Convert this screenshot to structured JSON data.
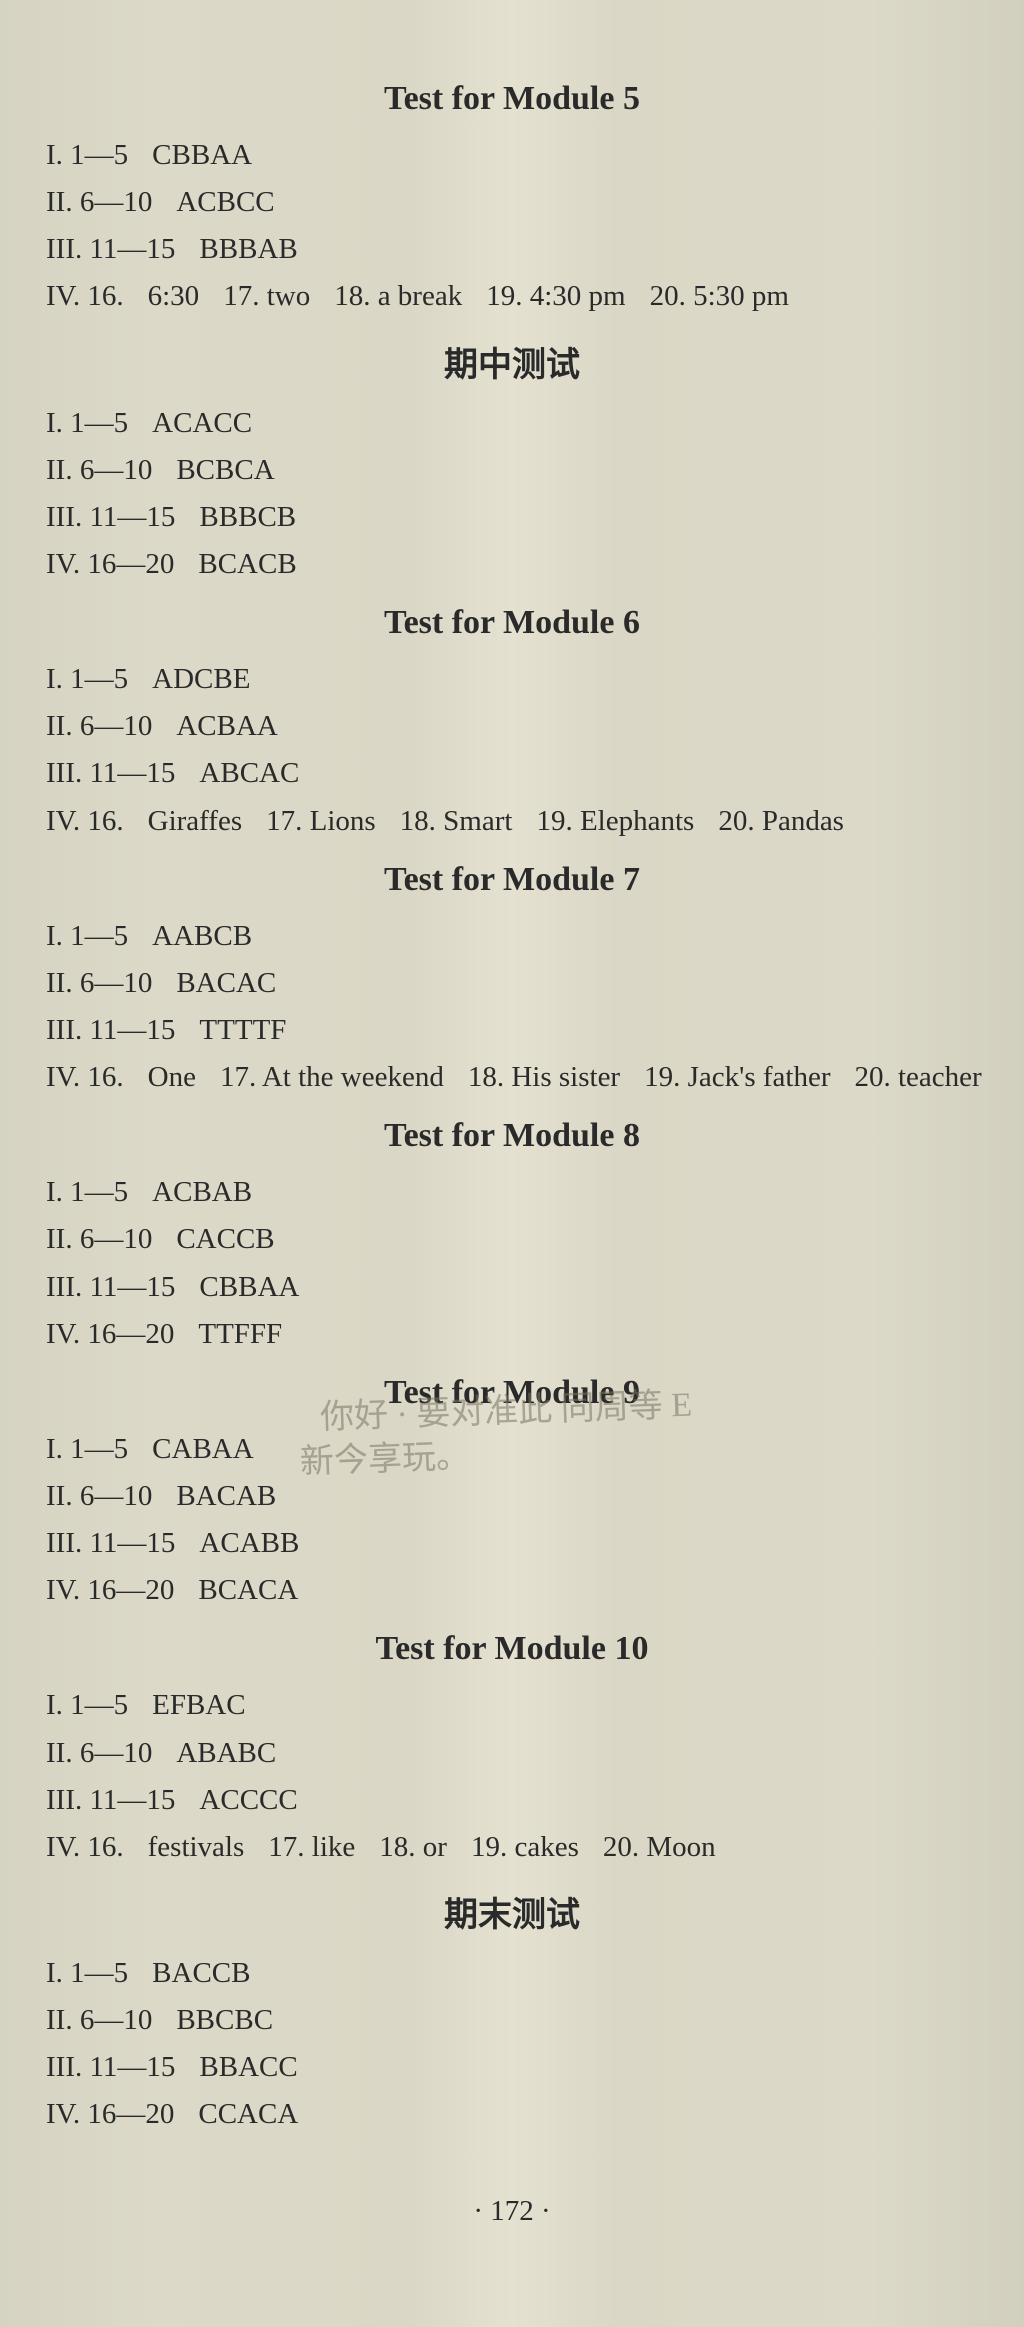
{
  "page_number": "· 172 ·",
  "pencil_note_line1": "你好 · 要对准此 同周等 E",
  "pencil_note_line2": "新今享玩。",
  "sections": [
    {
      "title": "Test for Module 5",
      "lines": [
        {
          "prefix": "I",
          "range": ". 1—5",
          "parts": [
            "CBBAA"
          ]
        },
        {
          "prefix": "II",
          "range": ". 6—10",
          "parts": [
            "ACBCC"
          ]
        },
        {
          "prefix": "III",
          "range": ". 11—15",
          "parts": [
            "BBBAB"
          ]
        },
        {
          "prefix": "IV",
          "range": ". 16.",
          "parts": [
            "6:30",
            "17. two",
            "18. a break",
            "19. 4:30 pm",
            "20. 5:30 pm"
          ]
        }
      ]
    },
    {
      "title": "期中测试",
      "lines": [
        {
          "prefix": "I",
          "range": ". 1—5",
          "parts": [
            "ACACC"
          ]
        },
        {
          "prefix": "II",
          "range": ". 6—10",
          "parts": [
            "BCBCA"
          ]
        },
        {
          "prefix": "III",
          "range": ". 11—15",
          "parts": [
            "BBBCB"
          ]
        },
        {
          "prefix": "IV",
          "range": ". 16—20",
          "parts": [
            "BCACB"
          ]
        }
      ]
    },
    {
      "title": "Test for Module 6",
      "lines": [
        {
          "prefix": "I",
          "range": ". 1—5",
          "parts": [
            "ADCBE"
          ]
        },
        {
          "prefix": "II",
          "range": ". 6—10",
          "parts": [
            "ACBAA"
          ]
        },
        {
          "prefix": "III",
          "range": ". 11—15",
          "parts": [
            "ABCAC"
          ]
        },
        {
          "prefix": "IV",
          "range": ". 16.",
          "parts": [
            "Giraffes",
            "17. Lions",
            "18. Smart",
            "19. Elephants",
            "20. Pandas"
          ]
        }
      ]
    },
    {
      "title": "Test for Module 7",
      "lines": [
        {
          "prefix": "I",
          "range": ". 1—5",
          "parts": [
            "AABCB"
          ]
        },
        {
          "prefix": "II",
          "range": ". 6—10",
          "parts": [
            "BACAC"
          ]
        },
        {
          "prefix": "III",
          "range": ". 11—15",
          "parts": [
            "TTTTF"
          ]
        },
        {
          "prefix": "IV",
          "range": ". 16.",
          "parts": [
            "One",
            "17. At the weekend",
            "18. His sister",
            "19. Jack's father",
            "20. teacher"
          ]
        }
      ]
    },
    {
      "title": "Test for Module 8",
      "lines": [
        {
          "prefix": "I",
          "range": ". 1—5",
          "parts": [
            "ACBAB"
          ]
        },
        {
          "prefix": "II",
          "range": ". 6—10",
          "parts": [
            "CACCB"
          ]
        },
        {
          "prefix": "III",
          "range": ". 11—15",
          "parts": [
            "CBBAA"
          ]
        },
        {
          "prefix": "IV",
          "range": ". 16—20",
          "parts": [
            "TTFFF"
          ]
        }
      ]
    },
    {
      "title": "Test for Module 9",
      "lines": [
        {
          "prefix": "I",
          "range": ". 1—5",
          "parts": [
            "CABAA"
          ]
        },
        {
          "prefix": "II",
          "range": ". 6—10",
          "parts": [
            "BACAB"
          ]
        },
        {
          "prefix": "III",
          "range": ". 11—15",
          "parts": [
            "ACABB"
          ]
        },
        {
          "prefix": "IV",
          "range": ". 16—20",
          "parts": [
            "BCACA"
          ]
        }
      ]
    },
    {
      "title": "Test for Module 10",
      "lines": [
        {
          "prefix": "I",
          "range": ". 1—5",
          "parts": [
            "EFBAC"
          ]
        },
        {
          "prefix": "II",
          "range": ". 6—10",
          "parts": [
            "ABABC"
          ]
        },
        {
          "prefix": "III",
          "range": ". 11—15",
          "parts": [
            "ACCCC"
          ]
        },
        {
          "prefix": "IV",
          "range": ". 16.",
          "parts": [
            "festivals",
            "17. like",
            "18. or",
            "19. cakes",
            "20. Moon"
          ]
        }
      ]
    },
    {
      "title": "期末测试",
      "lines": [
        {
          "prefix": "I",
          "range": ". 1—5",
          "parts": [
            "BACCB"
          ]
        },
        {
          "prefix": "II",
          "range": ". 6—10",
          "parts": [
            "BBCBC"
          ]
        },
        {
          "prefix": "III",
          "range": ". 11—15",
          "parts": [
            "BBACC"
          ]
        },
        {
          "prefix": "IV",
          "range": ". 16—20",
          "parts": [
            "CCACA"
          ]
        }
      ]
    }
  ]
}
